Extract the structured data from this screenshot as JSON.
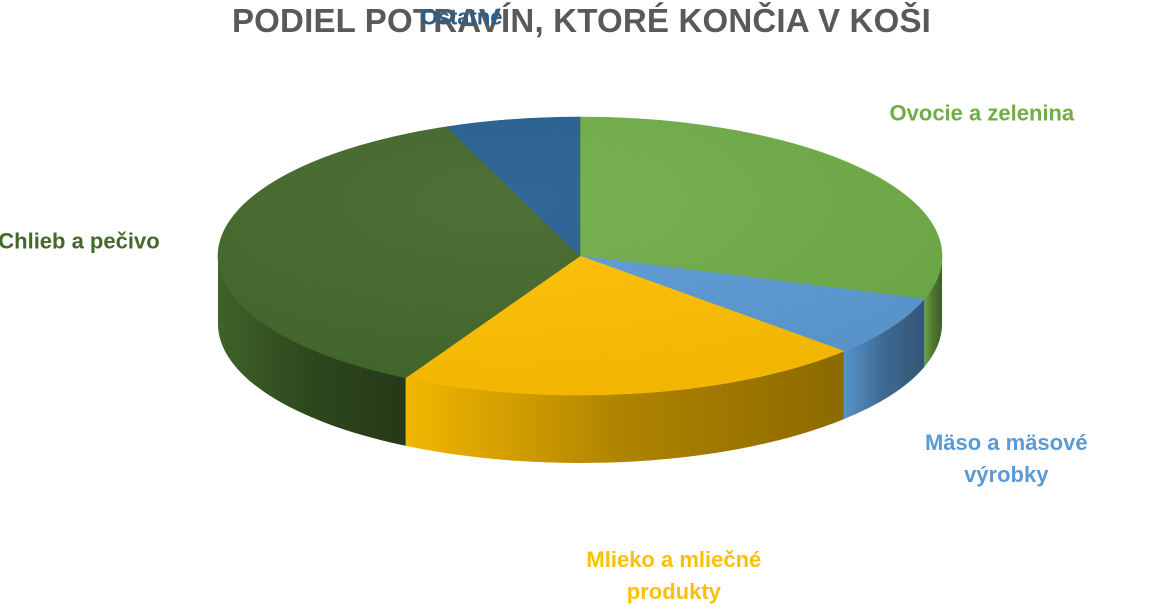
{
  "chart_data": {
    "type": "pie",
    "title": "PODIEL POTRAVÍN, KTORÉ KONČIA V KOŠI",
    "legend": "none",
    "slices": [
      {
        "label": "Ovocie a zelenina",
        "lines": [
          "Ovocie a zelenina"
        ],
        "value": 30,
        "color": "#70AD47"
      },
      {
        "label": "Mäso a mäsové výrobky",
        "lines": [
          "Mäso a mäsové",
          "výrobky"
        ],
        "value": 7,
        "color": "#5B9BD5"
      },
      {
        "label": "Mlieko a mliečné produkty",
        "lines": [
          "Mlieko a mliečné",
          "produkty"
        ],
        "value": 21,
        "color": "#FFC000"
      },
      {
        "label": "Chlieb a pečivo",
        "lines": [
          "Chlieb a pečivo"
        ],
        "value": 36,
        "color": "#43682B"
      },
      {
        "label": "Ostatné",
        "lines": [
          "Ostatné"
        ],
        "value": 6,
        "color": "#255E91"
      }
    ]
  }
}
